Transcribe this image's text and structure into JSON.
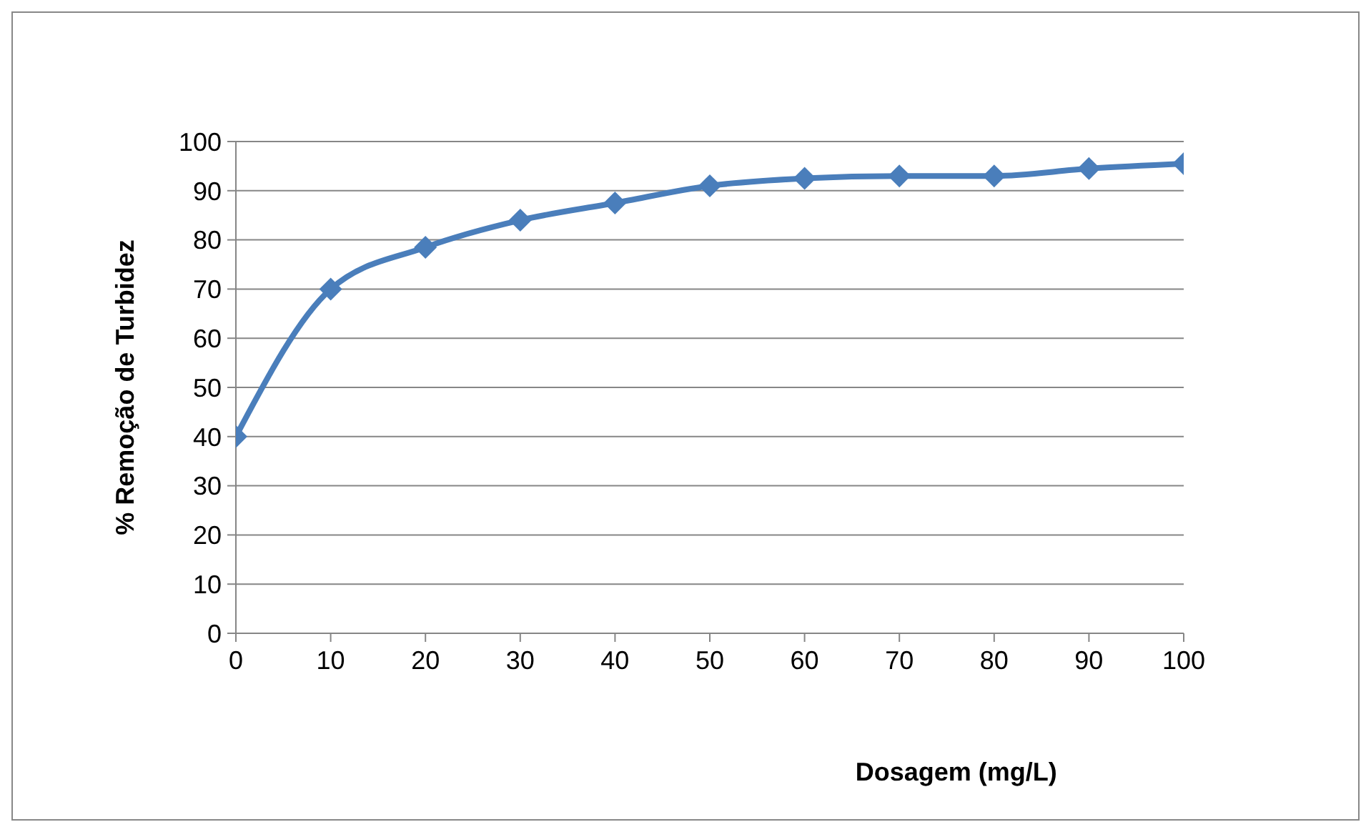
{
  "chart_data": {
    "type": "line",
    "xlabel": "Dosagem (mg/L)",
    "ylabel": "% Remoção de Turbidez",
    "x": [
      0,
      10,
      20,
      30,
      40,
      50,
      60,
      70,
      80,
      90,
      100
    ],
    "series": [
      {
        "color": "#4a7ebb",
        "values": [
          40,
          70,
          78.5,
          84,
          87.5,
          91,
          92.5,
          93,
          93,
          94.5,
          95.5
        ]
      }
    ],
    "xlim": [
      0,
      100
    ],
    "xticks": [
      0,
      10,
      20,
      30,
      40,
      50,
      60,
      70,
      80,
      90,
      100
    ],
    "ylim": [
      0,
      100
    ],
    "yticks": [
      0,
      10,
      20,
      30,
      40,
      50,
      60,
      70,
      80,
      90,
      100
    ],
    "grid": "y",
    "marker": "diamond",
    "line_style": "solid",
    "legend": false
  }
}
